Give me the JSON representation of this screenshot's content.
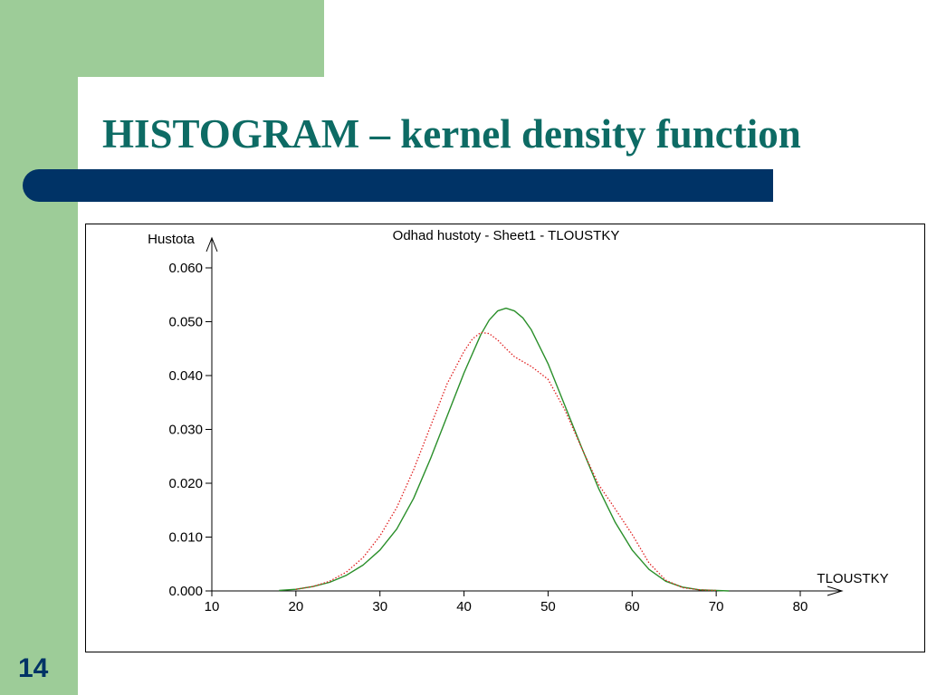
{
  "slide": {
    "title": "HISTOGRAM – kernel density function",
    "page_number": "14",
    "colors": {
      "side_band": "#9dcc98",
      "title_text": "#0d6b64",
      "title_bar": "#003366",
      "page_number": "#003366"
    }
  },
  "chart_data": {
    "type": "line",
    "title": "Odhad hustoty - Sheet1 - TLOUSTKY",
    "xlabel": "TLOUSTKY",
    "ylabel": "Hustota",
    "xlim": [
      10,
      80
    ],
    "ylim": [
      0,
      0.06
    ],
    "xticks": [
      "10",
      "20",
      "30",
      "40",
      "50",
      "60",
      "70",
      "80"
    ],
    "yticks": [
      "0.000",
      "0.010",
      "0.020",
      "0.030",
      "0.040",
      "0.050",
      "0.060"
    ],
    "grid": false,
    "series": [
      {
        "color": "#2a8f2a",
        "style": "solid",
        "x": [
          18,
          20,
          22,
          24,
          26,
          28,
          30,
          32,
          34,
          36,
          38,
          40,
          42,
          43,
          44,
          45,
          46,
          47,
          48,
          50,
          52,
          54,
          56,
          58,
          60,
          62,
          64,
          66,
          68,
          70,
          71.5
        ],
        "y": [
          0.0001,
          0.0003,
          0.0008,
          0.0016,
          0.0029,
          0.0048,
          0.0076,
          0.0115,
          0.0172,
          0.0245,
          0.0325,
          0.0405,
          0.0476,
          0.0503,
          0.052,
          0.0525,
          0.052,
          0.0507,
          0.0485,
          0.0422,
          0.0344,
          0.0266,
          0.0191,
          0.0127,
          0.0076,
          0.004,
          0.0018,
          0.0007,
          0.0002,
          0.0001,
          0
        ]
      },
      {
        "color": "#e02020",
        "style": "dotted",
        "x": [
          20,
          22,
          24,
          26,
          28,
          30,
          32,
          34,
          36,
          38,
          40,
          41,
          42,
          43,
          44,
          45,
          46,
          48,
          50,
          52,
          54,
          56,
          58,
          60,
          62,
          64,
          66,
          68,
          70
        ],
        "y": [
          0.0003,
          0.0008,
          0.0018,
          0.0035,
          0.0062,
          0.0102,
          0.0155,
          0.0225,
          0.0305,
          0.0385,
          0.0445,
          0.0468,
          0.048,
          0.0478,
          0.0466,
          0.045,
          0.0435,
          0.0417,
          0.0393,
          0.0336,
          0.0265,
          0.0198,
          0.0152,
          0.0105,
          0.0052,
          0.002,
          0.0006,
          0.0002,
          0.0001
        ]
      }
    ]
  }
}
